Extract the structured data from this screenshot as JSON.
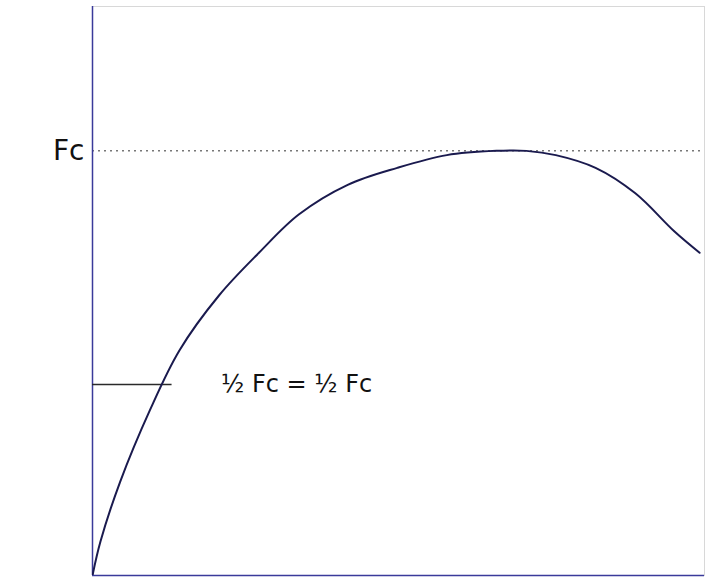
{
  "chart_data": {
    "type": "line",
    "x": [
      0,
      0.13,
      0.45,
      0.94,
      1.42,
      2.07,
      2.72,
      3.37,
      4.17,
      4.98,
      5.79,
      6.6,
      7.09,
      7.57,
      8.22,
      8.87,
      9.51,
      9.92
    ],
    "values": [
      0,
      0.08,
      0.22,
      0.39,
      0.53,
      0.66,
      0.76,
      0.85,
      0.92,
      0.96,
      0.99,
      1.0,
      1.0,
      0.99,
      0.96,
      0.9,
      0.81,
      0.76
    ],
    "color": "#1a1a4e",
    "xlim": [
      0,
      10
    ],
    "ylim": [
      0,
      1.34
    ],
    "yticks": [
      {
        "value": 1,
        "label": "Fc"
      }
    ],
    "grid": true,
    "tick_labels": "y",
    "annotation": {
      "text": "½ Fc = ½ Fc",
      "y": 0.45,
      "x_end": 1.3
    }
  }
}
